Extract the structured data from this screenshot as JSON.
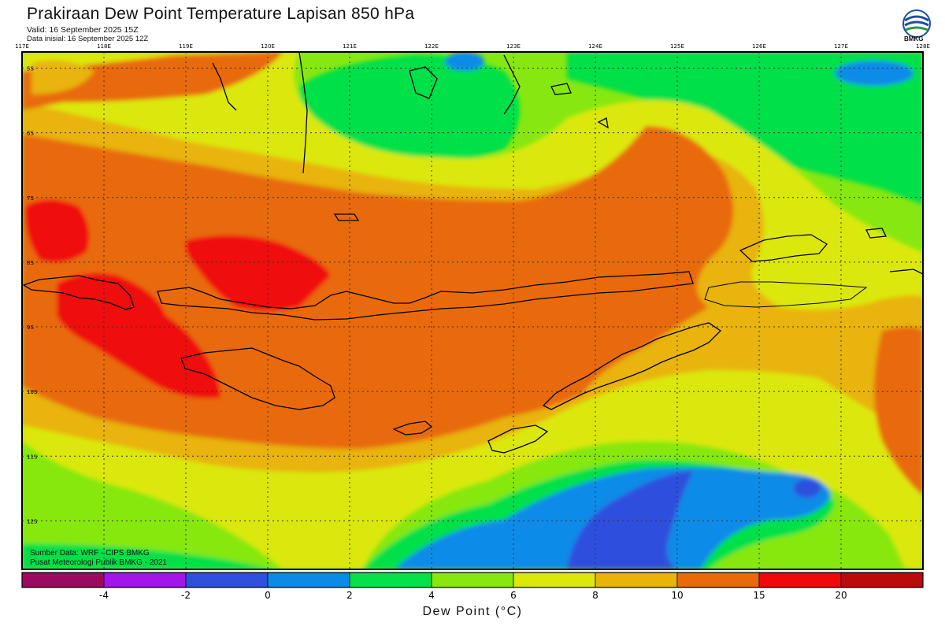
{
  "header": {
    "title": "Prakiraan Dew Point Temperature Lapisan 850 hPa",
    "valid": "Valid: 16 September 2025 15Z",
    "init": "Data inisial: 16 September 2025 12Z"
  },
  "logo": {
    "text": "BMKG",
    "icon": "bmkg-logo"
  },
  "map": {
    "lon_labels": [
      "117E",
      "118E",
      "119E",
      "120E",
      "121E",
      "122E",
      "123E",
      "124E",
      "125E",
      "126E",
      "127E",
      "128E"
    ],
    "lat_labels": [
      "5S",
      "6S",
      "7S",
      "8S",
      "9S",
      "10S",
      "11S",
      "12S"
    ],
    "lon_range": [
      117,
      128
    ],
    "lat_range": [
      -4.75,
      -12.75
    ],
    "grid": "dotted"
  },
  "credits": {
    "source": "Sumber Data: WRF - CIPS BMKG",
    "org": "Pusat Meteorologi Publik BMKG - 2021"
  },
  "colorbar": {
    "label": "Dew Point (°C)",
    "ticks": [
      "-4",
      "-2",
      "0",
      "2",
      "4",
      "6",
      "8",
      "10",
      "15",
      "20"
    ],
    "colors": [
      "#9b0a5f",
      "#a315e8",
      "#2e50dd",
      "#0a8be8",
      "#06e04a",
      "#86e810",
      "#dce80a",
      "#e8b40a",
      "#e86a0a",
      "#ef0a0a",
      "#bb0a0a"
    ]
  }
}
